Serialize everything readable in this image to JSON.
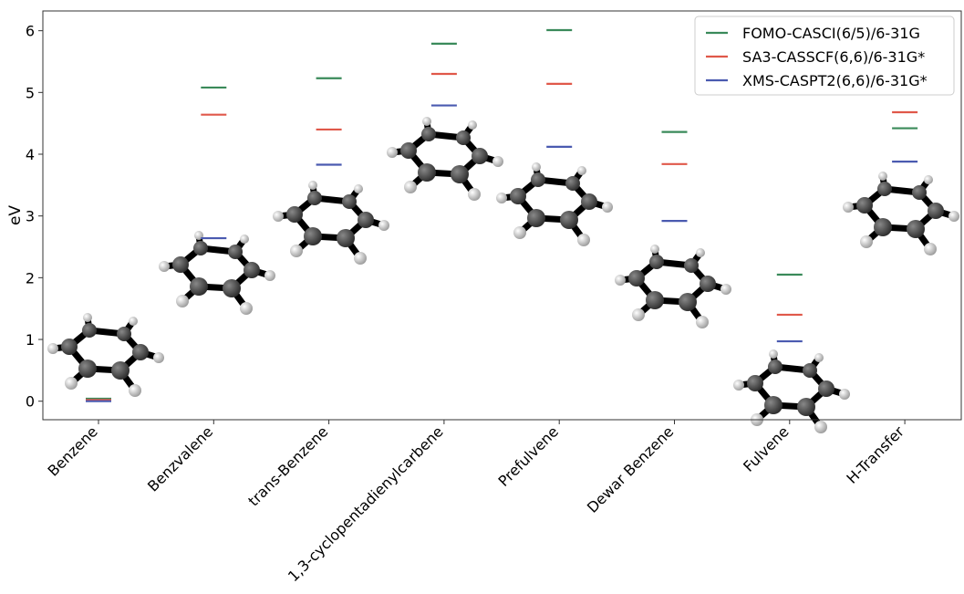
{
  "chart_data": {
    "type": "level",
    "ylabel": "eV",
    "categories": [
      "Benzene",
      "Benzvalene",
      "trans-Benzene",
      "1,3-cyclopentadienylcarbene",
      "Prefulvene",
      "Dewar Benzene",
      "Fulvene",
      "H-Transfer"
    ],
    "series": [
      {
        "name": "FOMO-CASCI(6/5)/6-31G",
        "color": "#3a8a5a",
        "values": [
          0.04,
          5.08,
          5.23,
          5.79,
          6.01,
          4.36,
          2.05,
          4.42
        ]
      },
      {
        "name": "SA3-CASSCF(6,6)/6-31G*",
        "color": "#e0584a",
        "values": [
          0.02,
          4.64,
          4.4,
          5.3,
          5.14,
          3.84,
          1.4,
          4.68
        ]
      },
      {
        "name": "XMS-CASPT2(6,6)/6-31G*",
        "color": "#4a5ab0",
        "values": [
          0.0,
          2.64,
          3.83,
          4.79,
          4.12,
          2.92,
          0.97,
          3.88
        ]
      }
    ],
    "ylim": [
      -0.3,
      6.32
    ],
    "yticks": [
      0,
      1,
      2,
      3,
      4,
      5,
      6
    ],
    "legend": "upper right"
  }
}
